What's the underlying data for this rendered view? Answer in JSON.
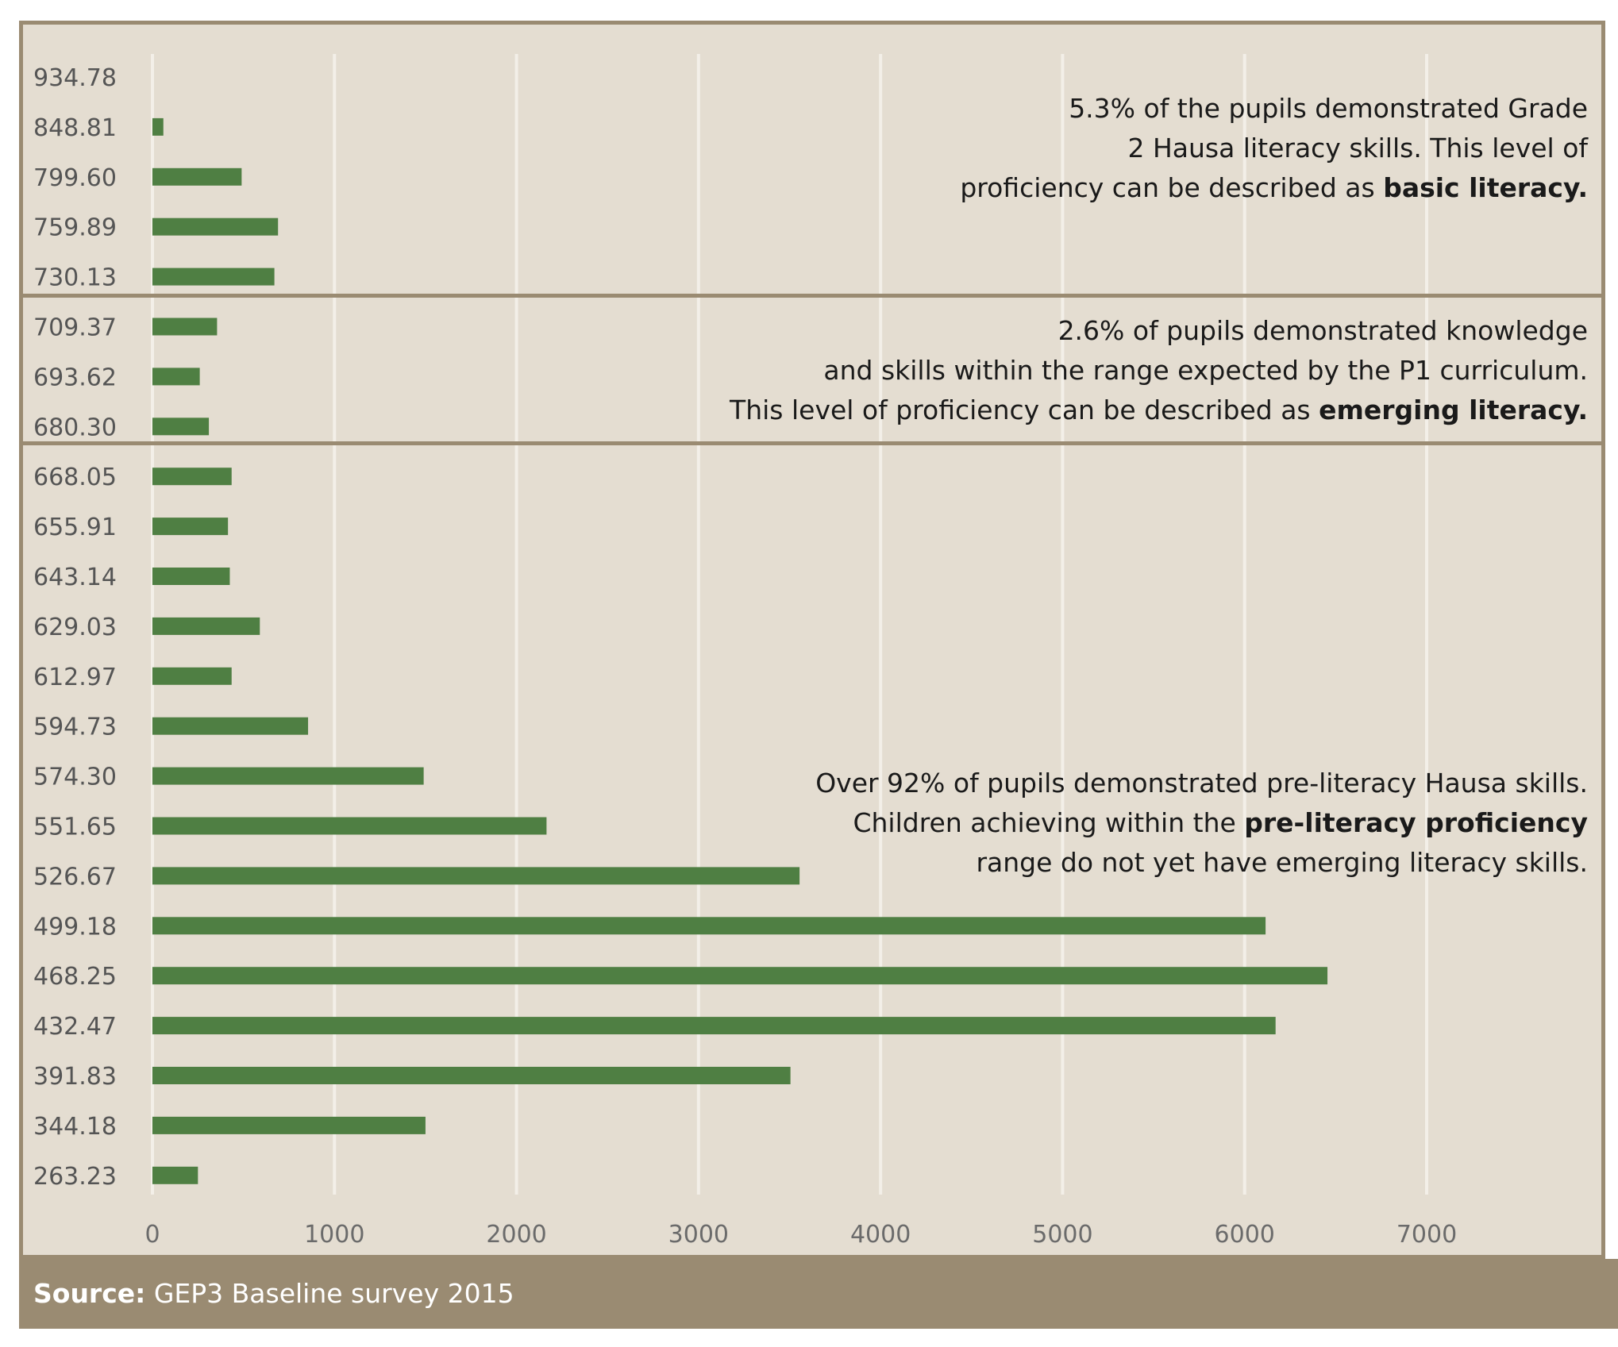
{
  "chart_data": {
    "type": "bar",
    "orientation": "horizontal",
    "categories": [
      "934.78",
      "848.81",
      "799.60",
      "759.89",
      "730.13",
      "709.37",
      "693.62",
      "680.30",
      "668.05",
      "655.91",
      "643.14",
      "629.03",
      "612.97",
      "594.73",
      "574.30",
      "551.65",
      "526.67",
      "499.18",
      "468.25",
      "432.47",
      "391.83",
      "344.18",
      "263.23"
    ],
    "values": [
      0,
      60,
      490,
      690,
      670,
      355,
      260,
      310,
      435,
      415,
      425,
      590,
      435,
      855,
      1490,
      2165,
      3555,
      6115,
      6455,
      6170,
      3505,
      1500,
      250
    ],
    "x_ticks": [
      "0",
      "1000",
      "2000",
      "3000",
      "4000",
      "5000",
      "6000",
      "7000"
    ],
    "xlim": [
      0,
      7000
    ],
    "grid": true,
    "bar_color": "#4f7f43"
  },
  "bands": [
    {
      "name": "basic",
      "lines": [
        [
          {
            "t": "5.3% of the pupils demonstrated Grade"
          }
        ],
        [
          {
            "t": "2 Hausa literacy skills. This level of"
          }
        ],
        [
          {
            "t": "proficiency can be described as "
          },
          {
            "t": "basic literacy.",
            "b": true
          }
        ]
      ]
    },
    {
      "name": "emerging",
      "lines": [
        [
          {
            "t": "2.6% of pupils demonstrated knowledge"
          }
        ],
        [
          {
            "t": "and skills within the range expected by the P1 curriculum."
          }
        ],
        [
          {
            "t": "This level of proficiency can be described as "
          },
          {
            "t": "emerging literacy.",
            "b": true
          }
        ]
      ]
    },
    {
      "name": "pre-literacy",
      "lines": [
        [
          {
            "t": "Over 92% of pupils demonstrated pre-literacy Hausa skills."
          }
        ],
        [
          {
            "t": "Children achieving within the "
          },
          {
            "t": "pre-literacy proficiency",
            "b": true
          }
        ],
        [
          {
            "t": "range do not yet have emerging literacy skills."
          }
        ]
      ]
    }
  ],
  "source": {
    "label": "Source:",
    "text": " GEP3 Baseline survey 2015"
  }
}
